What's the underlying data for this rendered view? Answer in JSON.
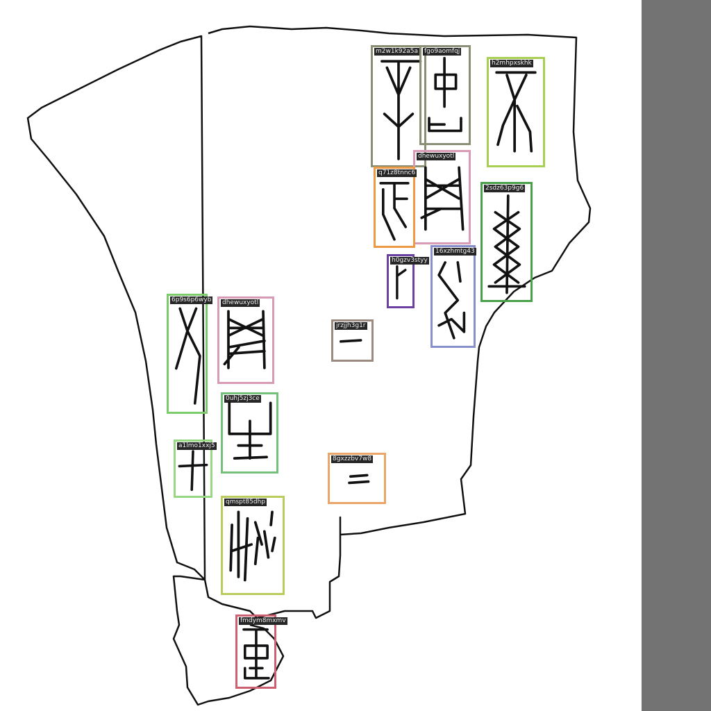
{
  "image": {
    "description_free": true,
    "background_color": "#ffffff",
    "sidebar_color": "#737373",
    "outline_color": "#111111"
  },
  "annotations": [
    {
      "id": "m2w1k92a5a",
      "color": "#8a8f74",
      "glyph": "tree-glyph"
    },
    {
      "id": "fgo9aomfqj",
      "color": "#8a9076",
      "glyph": "box-stem-glyph"
    },
    {
      "id": "h2mhpxskhk",
      "color": "#a8cf50",
      "glyph": "forked-glyph"
    },
    {
      "id": "dhewuxyotl",
      "color": "#d89ab4",
      "glyph": "net-glyph"
    },
    {
      "id": "q71z8tnnc6",
      "color": "#ee9a44",
      "glyph": "frame-glyph"
    },
    {
      "id": "2sdz63p9g6",
      "color": "#48a048",
      "glyph": "zigzag-glyph"
    },
    {
      "id": "h0gzv3styy",
      "color": "#6a40a0",
      "glyph": "hook-glyph"
    },
    {
      "id": "16xzhmtg43",
      "color": "#8890cc",
      "glyph": "twist-glyph"
    },
    {
      "id": "jrzjjh3g1r",
      "color": "#9a8a80",
      "glyph": "one-glyph"
    },
    {
      "id": "6p9s6p6wyb",
      "color": "#7ccc6c",
      "glyph": "person-glyph"
    },
    {
      "id": "dhewuxyotl",
      "color": "#d89ab4",
      "glyph": "net-glyph"
    },
    {
      "id": "0uhj5zj3ce",
      "color": "#74c07a",
      "glyph": "grow-glyph"
    },
    {
      "id": "a1lmo1xxj5",
      "color": "#98d884",
      "glyph": "cross-glyph"
    },
    {
      "id": "8gxzzbv7w8",
      "color": "#eaa668",
      "glyph": "two-glyph"
    },
    {
      "id": "qmspt85dhp",
      "color": "#bccc5c",
      "glyph": "strokes-glyph"
    },
    {
      "id": "fmdym8mxmv",
      "color": "#cc6070",
      "glyph": "vessel-glyph"
    }
  ]
}
